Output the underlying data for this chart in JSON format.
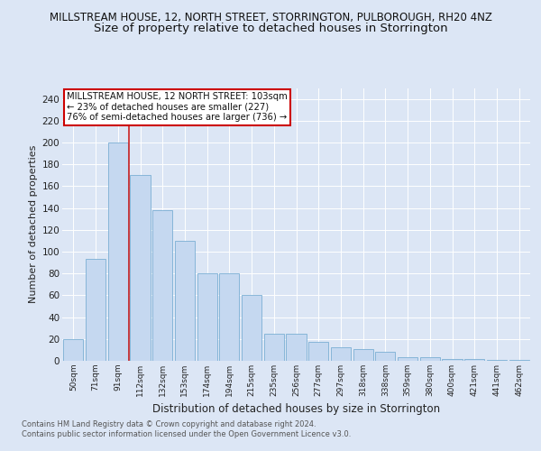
{
  "title_line1": "MILLSTREAM HOUSE, 12, NORTH STREET, STORRINGTON, PULBOROUGH, RH20 4NZ",
  "title_line2": "Size of property relative to detached houses in Storrington",
  "xlabel": "Distribution of detached houses by size in Storrington",
  "ylabel": "Number of detached properties",
  "categories": [
    "50sqm",
    "71sqm",
    "91sqm",
    "112sqm",
    "132sqm",
    "153sqm",
    "174sqm",
    "194sqm",
    "215sqm",
    "235sqm",
    "256sqm",
    "277sqm",
    "297sqm",
    "318sqm",
    "338sqm",
    "359sqm",
    "380sqm",
    "400sqm",
    "421sqm",
    "441sqm",
    "462sqm"
  ],
  "values": [
    20,
    93,
    200,
    170,
    138,
    110,
    80,
    80,
    60,
    25,
    25,
    17,
    12,
    11,
    8,
    3,
    3,
    2,
    2,
    1,
    1
  ],
  "bar_color": "#c5d8f0",
  "bar_edge_color": "#7bafd4",
  "red_line_x": 2.5,
  "annotation_text": "MILLSTREAM HOUSE, 12 NORTH STREET: 103sqm\n← 23% of detached houses are smaller (227)\n76% of semi-detached houses are larger (736) →",
  "annotation_box_color": "#ffffff",
  "annotation_box_edge_color": "#cc0000",
  "footer_line1": "Contains HM Land Registry data © Crown copyright and database right 2024.",
  "footer_line2": "Contains public sector information licensed under the Open Government Licence v3.0.",
  "ylim": [
    0,
    250
  ],
  "yticks": [
    0,
    20,
    40,
    60,
    80,
    100,
    120,
    140,
    160,
    180,
    200,
    220,
    240
  ],
  "bg_color": "#dce6f5",
  "plot_bg_color": "#dce6f5",
  "title1_fontsize": 8.5,
  "title2_fontsize": 9.5,
  "xlabel_fontsize": 8.5,
  "ylabel_fontsize": 8
}
